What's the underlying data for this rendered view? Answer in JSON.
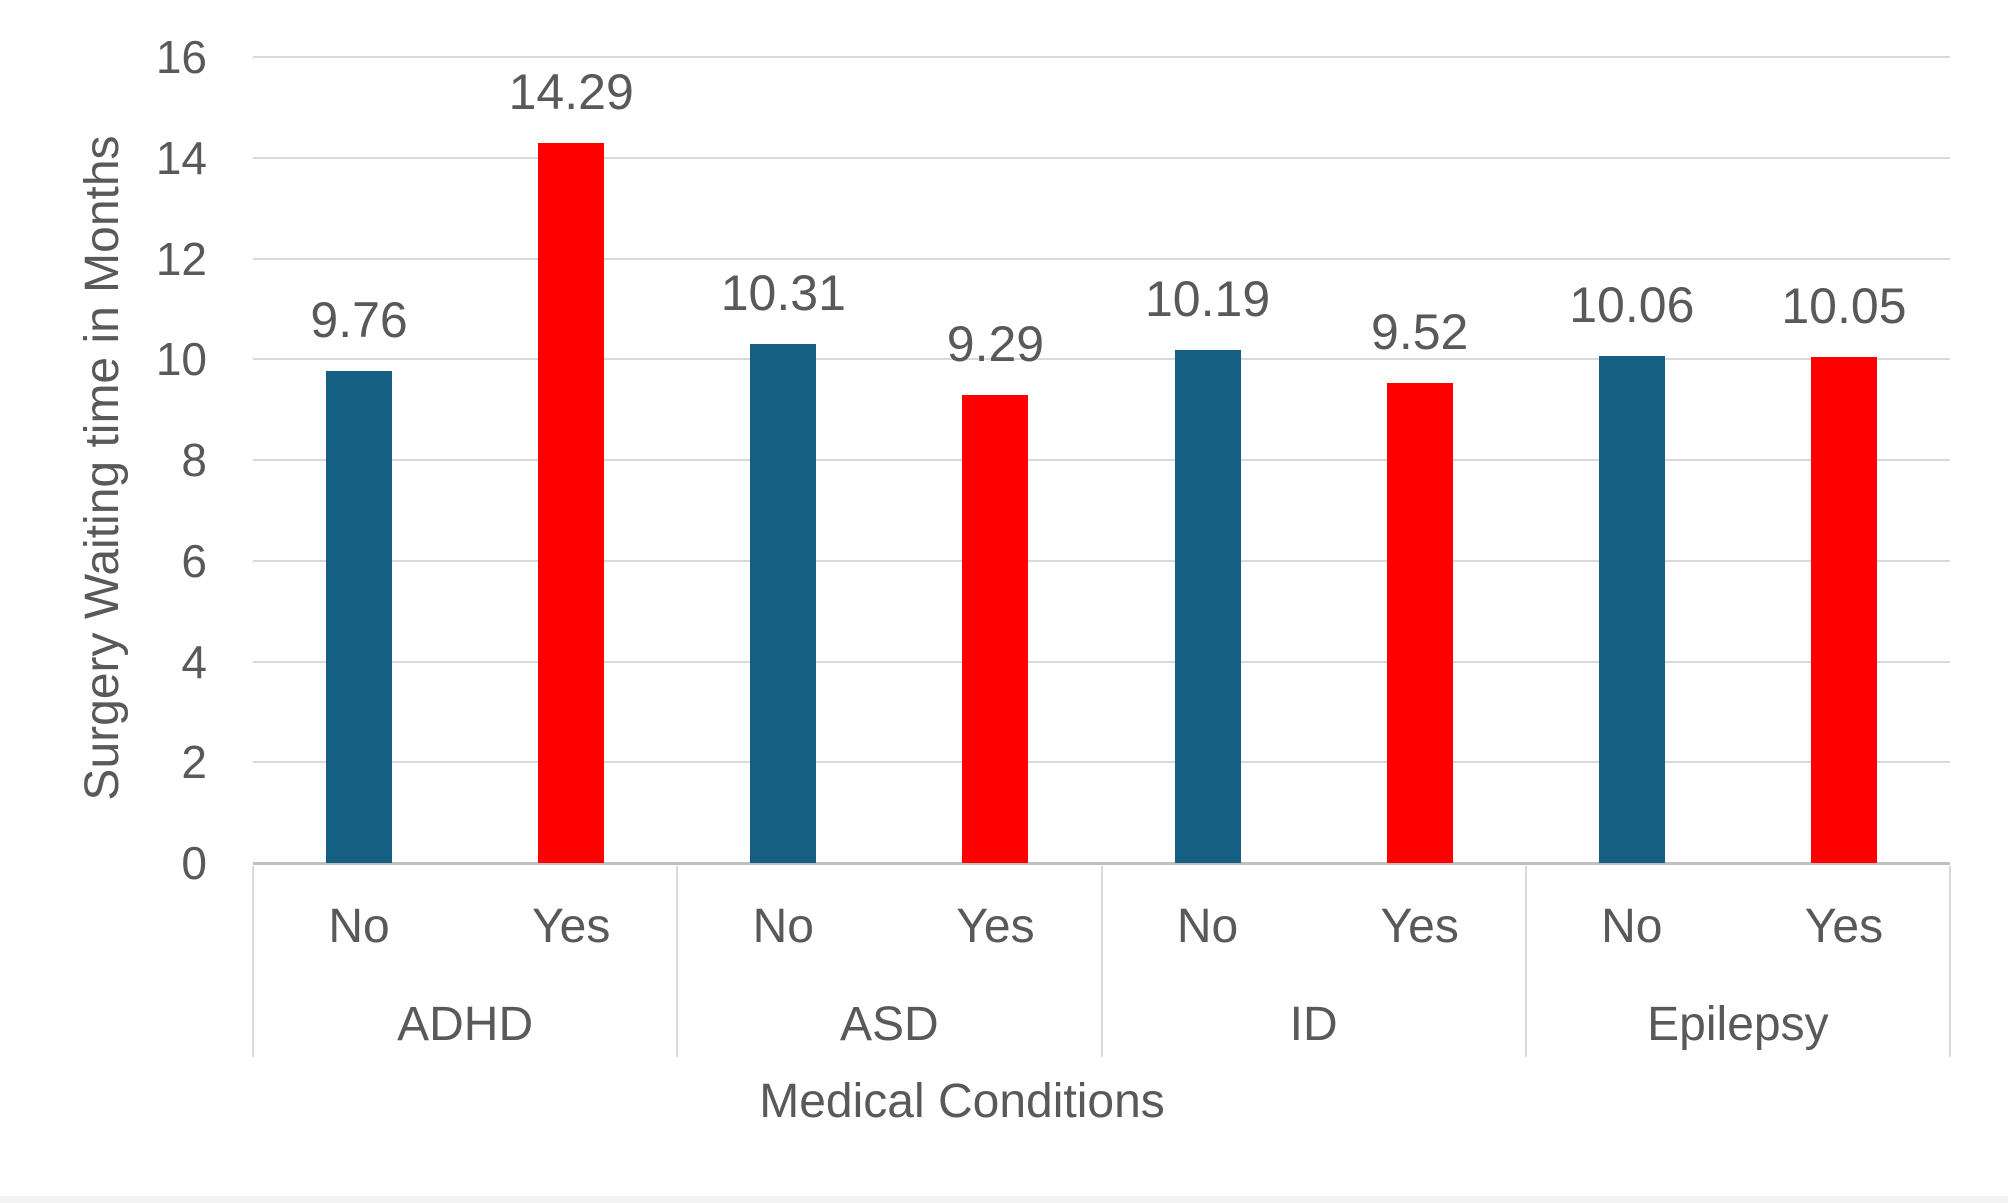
{
  "chart_data": {
    "type": "bar",
    "title": "",
    "xlabel": "Medical Conditions",
    "ylabel": "Surgery Waiting time in Months",
    "ylim": [
      0,
      16
    ],
    "yticks": [
      0,
      2,
      4,
      6,
      8,
      10,
      12,
      14,
      16
    ],
    "grid": true,
    "legend": "none",
    "categories": [
      "ADHD",
      "ASD",
      "ID",
      "Epilepsy"
    ],
    "subcategories": [
      "No",
      "Yes"
    ],
    "series": [
      {
        "name": "No",
        "color": "#156082",
        "values": [
          9.76,
          10.31,
          10.19,
          10.06
        ],
        "labels": [
          "9.76",
          "10.31",
          "10.19",
          "10.06"
        ]
      },
      {
        "name": "Yes",
        "color": "#FF0000",
        "values": [
          14.29,
          9.29,
          9.52,
          10.05
        ],
        "labels": [
          "14.29",
          "9.29",
          "9.52",
          "10.05"
        ]
      }
    ],
    "colors": {
      "text": "#595959",
      "gridline": "#D9D9D9",
      "axis_line": "#BFBFBF",
      "background": "#FFFFFF"
    }
  }
}
